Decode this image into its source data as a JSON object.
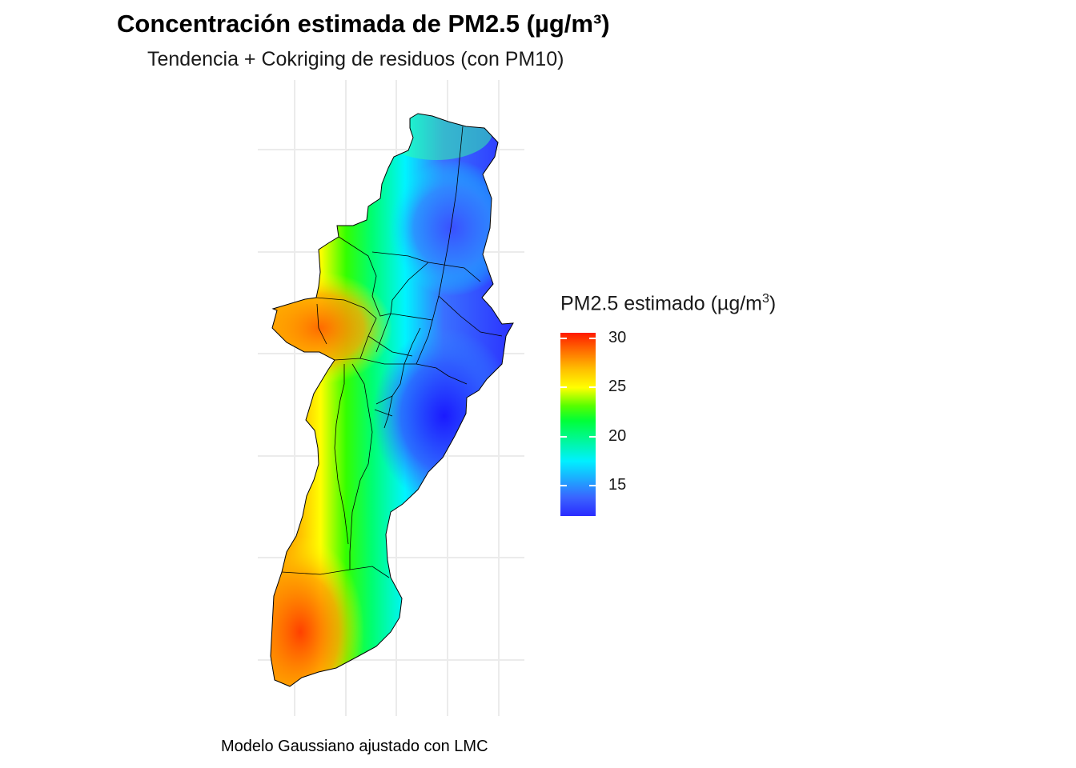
{
  "title": "Concentración estimada de PM2.5 (µg/m³)",
  "subtitle": "Tendencia + Cokriging de residuos (con PM10)",
  "caption": "Modelo Gaussiano ajustado con LMC",
  "legend": {
    "title_main": "PM2.5 estimado (µg/m",
    "title_sup": "3",
    "title_close": ")",
    "ticks": [
      "30",
      "25",
      "20",
      "15"
    ]
  },
  "colors": {
    "low": "#2a2bff",
    "mid_low": "#00f0ff",
    "mid": "#00ff38",
    "mid_high": "#ffff00",
    "high": "#ff1a00",
    "grid": "#ebebeb",
    "boundary": "#000000"
  },
  "map": {
    "scale_min": 12,
    "scale_max": 30,
    "grid": true
  }
}
